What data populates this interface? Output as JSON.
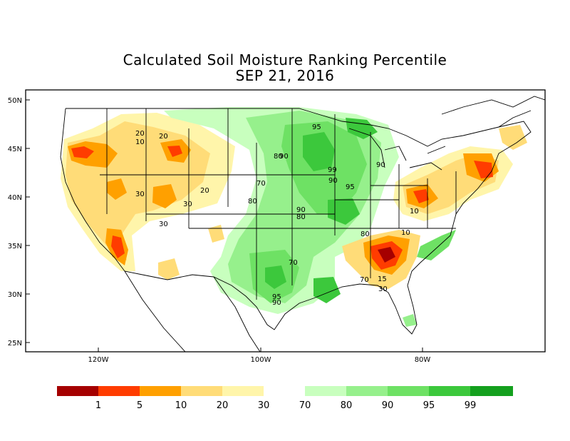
{
  "title_line1": "Calculated Soil Moisture Ranking Percentile",
  "title_line2": "SEP 21, 2016",
  "lat_labels": [
    "50N",
    "45N",
    "40N",
    "35N",
    "30N",
    "25N"
  ],
  "lon_labels": [
    "120W",
    "100W",
    "80W"
  ],
  "legend": {
    "colors": [
      "#a50000",
      "#ff3c00",
      "#ffa000",
      "#ffdc78",
      "#fff5aa",
      "#ffffff",
      "#c8ffbe",
      "#96f08c",
      "#6ee164",
      "#3cc83c",
      "#14a01e"
    ],
    "labels": [
      "1",
      "5",
      "10",
      "20",
      "30",
      "70",
      "80",
      "90",
      "95",
      "99"
    ]
  },
  "contour_labels": [
    "95",
    "20",
    "20",
    "10",
    "30",
    "30",
    "20",
    "30",
    "90",
    "80",
    "70",
    "80",
    "90",
    "99",
    "90",
    "95",
    "90",
    "80",
    "10",
    "10",
    "80",
    "70",
    "70",
    "15",
    "30",
    "95",
    "90"
  ]
}
